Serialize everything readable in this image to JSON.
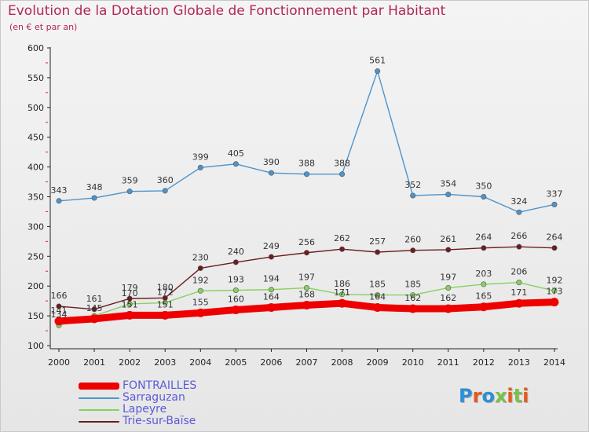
{
  "header": {
    "title": "Evolution de la Dotation Globale de Fonctionnement par Habitant",
    "subtitle": "(en € et par an)"
  },
  "logo": {
    "text": "Proxiti",
    "colors": [
      "#2a8fd8",
      "#e8591a",
      "#2a8fd8",
      "#7cc04a",
      "#e8591a",
      "#7cc04a",
      "#e8591a"
    ]
  },
  "chart_data": {
    "type": "line",
    "title": "Evolution de la Dotation Globale de Fonctionnement par Habitant",
    "subtitle": "(en € et par an)",
    "xlabel": "",
    "ylabel": "",
    "x": [
      "2000",
      "2001",
      "2002",
      "2003",
      "2004",
      "2005",
      "2006",
      "2007",
      "2008",
      "2009",
      "2010",
      "2011",
      "2012",
      "2013",
      "2014"
    ],
    "ylim": [
      100,
      600
    ],
    "yticks": [
      100,
      150,
      200,
      250,
      300,
      350,
      400,
      450,
      500,
      550,
      600
    ],
    "grid": false,
    "legend": "bottom-left",
    "series": [
      {
        "name": "Sarraguzan",
        "color": "#4d94cc",
        "values": [
          343,
          348,
          359,
          360,
          399,
          405,
          390,
          388,
          388,
          561,
          352,
          354,
          350,
          324,
          337
        ],
        "labels": [
          "343",
          "348",
          "359",
          "360",
          "399",
          "405",
          "390",
          "388",
          "388",
          "561",
          "352",
          "354",
          "350",
          "324",
          "337"
        ]
      },
      {
        "name": "Trie-sur-Baïse",
        "color": "#6b1d1d",
        "values": [
          166,
          161,
          179,
          180,
          230,
          240,
          249,
          256,
          262,
          257,
          260,
          261,
          264,
          266,
          264
        ],
        "labels": [
          "166",
          "161",
          "179",
          "180",
          "230",
          "240",
          "249",
          "256",
          "262",
          "257",
          "260",
          "261",
          "264",
          "266",
          "264"
        ]
      },
      {
        "name": "Lapeyre",
        "color": "#88d060",
        "values": [
          134,
          150,
          170,
          172,
          192,
          193,
          194,
          197,
          186,
          185,
          185,
          197,
          203,
          206,
          192
        ],
        "labels": [
          "134",
          "",
          "170",
          "172",
          "192",
          "193",
          "194",
          "197",
          "186",
          "185",
          "185",
          "197",
          "203",
          "206",
          "192"
        ]
      },
      {
        "name": "FONTRAILLES",
        "color": "#ee0000",
        "values": [
          141,
          145,
          151,
          151,
          155,
          160,
          164,
          168,
          171,
          164,
          162,
          162,
          165,
          171,
          173
        ],
        "labels": [
          "141",
          "145",
          "151",
          "151",
          "155",
          "160",
          "164",
          "168",
          "171",
          "164",
          "162",
          "162",
          "165",
          "171",
          "173"
        ]
      }
    ],
    "legend_entries": [
      {
        "name": "FONTRAILLES",
        "color": "#ee0000"
      },
      {
        "name": "Sarraguzan",
        "color": "#4d94cc"
      },
      {
        "name": "Lapeyre",
        "color": "#88d060"
      },
      {
        "name": "Trie-sur-Baïse",
        "color": "#6b1d1d"
      }
    ]
  }
}
